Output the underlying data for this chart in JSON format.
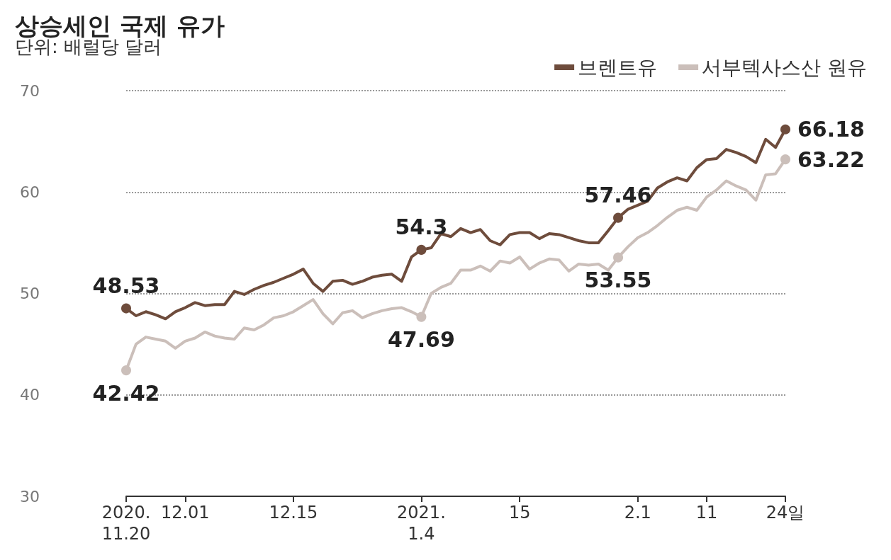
{
  "chart_data": {
    "type": "line",
    "title": "상승세인 국제 유가",
    "subtitle": "단위: 배럴당 달러",
    "categories": [
      "2020.\n11.20",
      null,
      null,
      null,
      null,
      null,
      "12.01",
      null,
      null,
      null,
      null,
      null,
      null,
      null,
      null,
      null,
      null,
      "12.15",
      null,
      null,
      null,
      null,
      null,
      null,
      null,
      null,
      null,
      null,
      null,
      null,
      "2021.\n1.4",
      null,
      null,
      null,
      null,
      null,
      null,
      null,
      null,
      null,
      "15",
      null,
      null,
      null,
      null,
      null,
      null,
      null,
      null,
      null,
      null,
      null,
      "2.1",
      null,
      null,
      null,
      null,
      null,
      null,
      "11",
      null,
      null,
      null,
      null,
      null,
      null,
      null,
      "24일"
    ],
    "series": [
      {
        "name": "브렌트유",
        "color": "#6e4c3c",
        "values": [
          48.53,
          47.8,
          48.2,
          47.9,
          47.5,
          48.2,
          48.6,
          49.1,
          48.8,
          48.9,
          48.9,
          50.2,
          49.9,
          50.4,
          50.8,
          51.1,
          51.5,
          51.9,
          52.4,
          51.0,
          50.2,
          51.2,
          51.3,
          50.9,
          51.2,
          51.6,
          51.8,
          51.9,
          51.2,
          53.6,
          54.3,
          54.5,
          55.9,
          55.6,
          56.4,
          56.0,
          56.3,
          55.2,
          54.8,
          55.8,
          56.0,
          56.0,
          55.4,
          55.9,
          55.8,
          55.5,
          55.2,
          55.0,
          55.0,
          56.2,
          57.46,
          58.3,
          58.7,
          59.1,
          60.4,
          61.0,
          61.4,
          61.1,
          62.4,
          63.2,
          63.3,
          64.2,
          63.9,
          63.5,
          62.9,
          65.2,
          64.4,
          66.18
        ],
        "value_labels": [
          "48.53",
          null,
          null,
          null,
          null,
          null,
          null,
          null,
          null,
          null,
          null,
          null,
          null,
          null,
          null,
          null,
          null,
          null,
          null,
          null,
          null,
          null,
          null,
          null,
          null,
          null,
          null,
          null,
          null,
          null,
          "54.3",
          null,
          null,
          null,
          null,
          null,
          null,
          null,
          null,
          null,
          null,
          null,
          null,
          null,
          null,
          null,
          null,
          null,
          null,
          null,
          "57.46",
          null,
          null,
          null,
          null,
          null,
          null,
          null,
          null,
          null,
          null,
          null,
          null,
          null,
          null,
          null,
          null,
          "66.18"
        ]
      },
      {
        "name": "서부텍사스산 원유",
        "color": "#cbbfba",
        "values": [
          42.42,
          45.0,
          45.7,
          45.5,
          45.3,
          44.6,
          45.3,
          45.6,
          46.2,
          45.8,
          45.6,
          45.5,
          46.6,
          46.4,
          46.9,
          47.6,
          47.8,
          48.2,
          48.8,
          49.4,
          48.0,
          47.0,
          48.1,
          48.3,
          47.6,
          48.0,
          48.3,
          48.5,
          48.6,
          48.2,
          47.69,
          50.0,
          50.6,
          51.0,
          52.3,
          52.3,
          52.7,
          52.2,
          53.2,
          53.0,
          53.6,
          52.4,
          53.0,
          53.4,
          53.3,
          52.2,
          52.9,
          52.8,
          52.9,
          52.3,
          53.55,
          54.6,
          55.5,
          56.0,
          56.7,
          57.5,
          58.2,
          58.5,
          58.2,
          59.5,
          60.2,
          61.1,
          60.6,
          60.2,
          59.2,
          61.7,
          61.8,
          63.22
        ],
        "value_labels": [
          "42.42",
          null,
          null,
          null,
          null,
          null,
          null,
          null,
          null,
          null,
          null,
          null,
          null,
          null,
          null,
          null,
          null,
          null,
          null,
          null,
          null,
          null,
          null,
          null,
          null,
          null,
          null,
          null,
          null,
          null,
          "47.69",
          null,
          null,
          null,
          null,
          null,
          null,
          null,
          null,
          null,
          null,
          null,
          null,
          null,
          null,
          null,
          null,
          null,
          null,
          null,
          "53.55",
          null,
          null,
          null,
          null,
          null,
          null,
          null,
          null,
          null,
          null,
          null,
          null,
          null,
          null,
          null,
          null,
          "63.22"
        ]
      }
    ],
    "ylim": [
      30,
      70
    ],
    "yticks": [
      30,
      40,
      50,
      60,
      70
    ],
    "grid": "y",
    "legend": "top right",
    "marker": "none",
    "line_style": "solid"
  }
}
